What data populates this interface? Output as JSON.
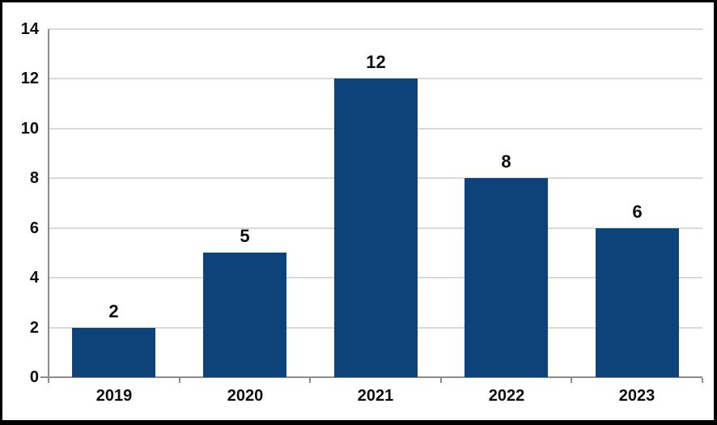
{
  "chart_data": {
    "type": "bar",
    "categories": [
      "2019",
      "2020",
      "2021",
      "2022",
      "2023"
    ],
    "values": [
      2,
      5,
      12,
      8,
      6
    ],
    "data_labels": [
      "2",
      "5",
      "12",
      "8",
      "6"
    ],
    "title": "",
    "xlabel": "",
    "ylabel": "",
    "ylim": [
      0,
      14
    ],
    "yticks": [
      0,
      2,
      4,
      6,
      8,
      10,
      12,
      14
    ],
    "grid": "horizontal",
    "legend_position": "none",
    "colors": {
      "bar": "#0E4379",
      "gridline": "#D9D9D9",
      "axis": "#8C8C8C",
      "label": "#0D0D0D",
      "frame": "#000000",
      "background": "#FFFFFF"
    }
  }
}
